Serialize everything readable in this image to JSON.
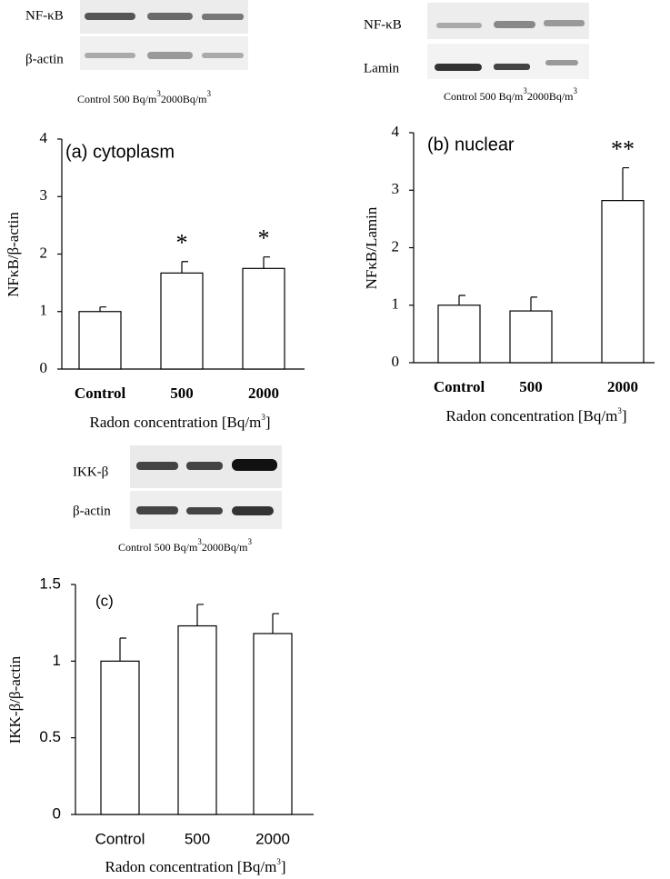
{
  "blots": [
    {
      "labels": [
        "NF-κB",
        "β-actin"
      ],
      "caption": [
        "Control 500 Bq/m",
        "3",
        "2000Bq/m",
        "3"
      ]
    },
    {
      "labels": [
        "NF-κB",
        "Lamin"
      ],
      "caption": [
        "Control 500 Bq/m",
        "3",
        "2000Bq/m",
        "3"
      ]
    },
    {
      "labels": [
        "IKK-β",
        "β-actin"
      ],
      "caption": [
        "Control 500 Bq/m",
        "3",
        "2000Bq/m",
        "3"
      ]
    }
  ],
  "chart_data": [
    {
      "type": "bar",
      "title": "(a) cytoplasm",
      "y_label": "NFκB/β-actin",
      "x_label": [
        "Radon concentration [Bq/m",
        "3",
        "]"
      ],
      "categories": [
        "Control",
        "500",
        "2000"
      ],
      "values": [
        1.0,
        1.67,
        1.75
      ],
      "errors": [
        0.08,
        0.2,
        0.2
      ],
      "annotations": [
        null,
        "*",
        "*"
      ],
      "color": "#ffffff",
      "ylim": [
        0,
        4
      ],
      "yticks": [
        0,
        1,
        2,
        3,
        4
      ]
    },
    {
      "type": "bar",
      "title": "(b) nuclear",
      "y_label": "NFκB/Lamin",
      "x_label": [
        "Radon concentration [Bq/m",
        "3",
        "]"
      ],
      "categories": [
        "Control",
        "500",
        "2000"
      ],
      "values": [
        1.0,
        0.9,
        2.82
      ],
      "errors": [
        0.17,
        0.24,
        0.57
      ],
      "annotations": [
        null,
        null,
        "**"
      ],
      "color": "#ffffff",
      "ylim": [
        0,
        4
      ],
      "yticks": [
        0,
        1,
        2,
        3,
        4
      ]
    },
    {
      "type": "bar",
      "title": "(c)",
      "y_label": "IKK-β/β-actin",
      "x_label": [
        "Radon concentration [Bq/m",
        "3",
        "]"
      ],
      "categories": [
        "Control",
        "500",
        "2000"
      ],
      "values": [
        1.0,
        1.23,
        1.18
      ],
      "errors": [
        0.15,
        0.14,
        0.13
      ],
      "annotations": [
        null,
        null,
        null
      ],
      "color": "#ffffff",
      "ylim": [
        0,
        1.5
      ],
      "yticks": [
        0,
        0.5,
        1,
        1.5
      ]
    }
  ]
}
